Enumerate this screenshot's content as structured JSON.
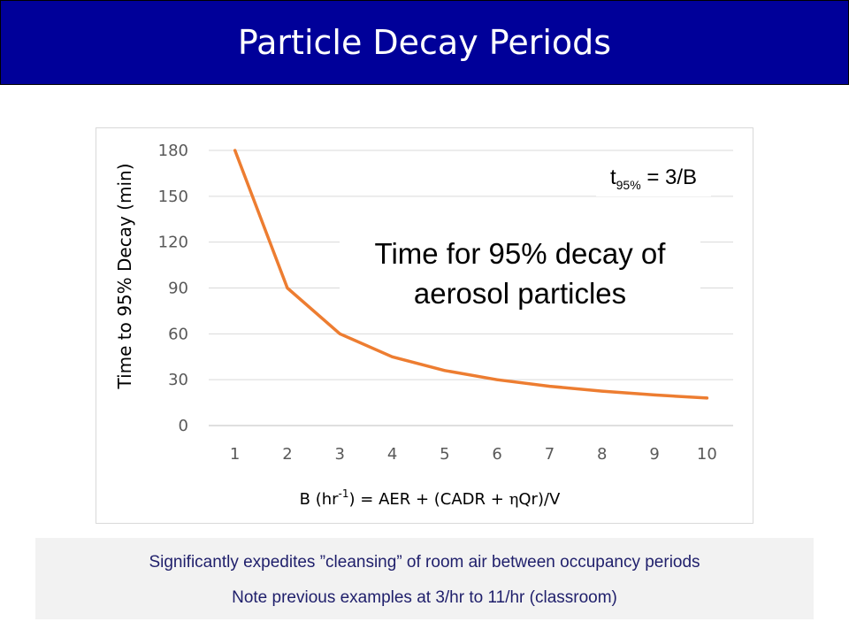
{
  "header": {
    "title": "Particle Decay Periods"
  },
  "chart_data": {
    "type": "line",
    "title": "",
    "ylabel": "Time to 95% Decay (min)",
    "xlabel_parts": {
      "before_sup": "B (hr",
      "sup": "-1",
      "after_sup": ") = AER + (CADR + ",
      "eta": "η",
      "after_eta": "Qr)/V"
    },
    "categories": [
      "1",
      "2",
      "3",
      "4",
      "5",
      "6",
      "7",
      "8",
      "9",
      "10"
    ],
    "x": [
      1,
      2,
      3,
      4,
      5,
      6,
      7,
      8,
      9,
      10
    ],
    "series": [
      {
        "values": [
          180,
          90,
          60,
          45,
          36,
          30,
          25.7,
          22.5,
          20,
          18
        ],
        "color": "#ed7d31"
      }
    ],
    "ylim": [
      0,
      180
    ],
    "yticks": [
      "0",
      "30",
      "60",
      "90",
      "120",
      "150",
      "180"
    ],
    "grid": true,
    "legend": "none",
    "annotations": {
      "main_line1": "Time for 95% decay of",
      "main_line2": "aerosol particles",
      "formula_t": "t",
      "formula_sub": "95%",
      "formula_rest": " = 3/B"
    }
  },
  "notes": {
    "line1": "Significantly expedites ”cleansing” of room air between occupancy periods",
    "line2": "Note previous examples at 3/hr to 11/hr (classroom)"
  },
  "colors": {
    "title_bg": "#000099",
    "series": "#ed7d31",
    "note_bg": "#f2f2f2",
    "note_text": "#1f1f6b"
  }
}
